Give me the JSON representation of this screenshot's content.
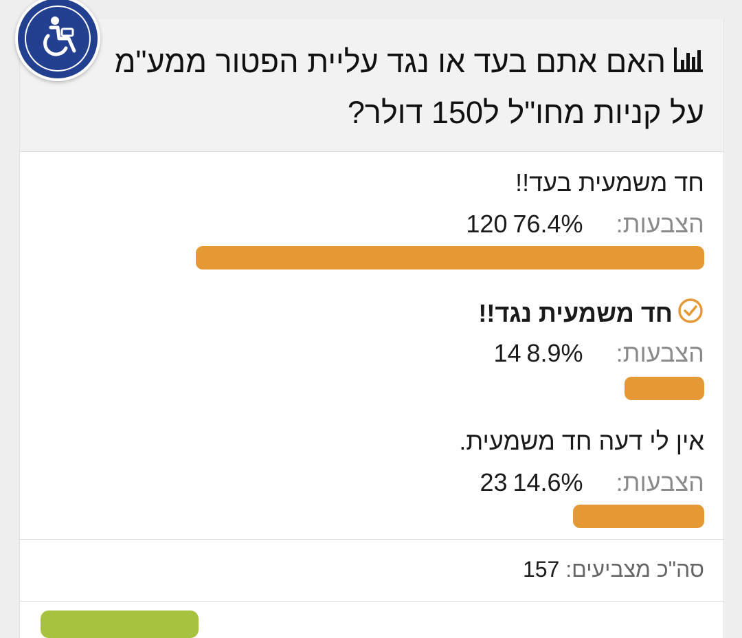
{
  "poll": {
    "title": "האם אתם בעד או נגד עליית הפטור ממע\"מ על קניות מחו\"ל ל150 דולר?",
    "votes_label": "הצבעות:",
    "options": [
      {
        "label": "חד משמעית בעד!!",
        "votes": "120",
        "percent_text": "76.4%",
        "percent": 76.4,
        "selected": false
      },
      {
        "label": "חד משמעית נגד!!",
        "votes": "14",
        "percent_text": "8.9%",
        "percent": 8.9,
        "selected": true
      },
      {
        "label": "אין לי דעה חד משמעית.",
        "votes": "23",
        "percent_text": "14.6%",
        "percent": 14.6,
        "selected": false
      }
    ],
    "total_label": "סה\"כ מצביעים:",
    "total": "157"
  },
  "icons": {
    "accessibility": "accessibility-wheelchair-icon",
    "chart": "bar-chart-icon",
    "check": "check-circle-icon"
  },
  "colors": {
    "bar": "#e59935",
    "accessibility_bg": "#22408f",
    "header_bg": "#f2f2f2",
    "button": "#a7c23c"
  }
}
